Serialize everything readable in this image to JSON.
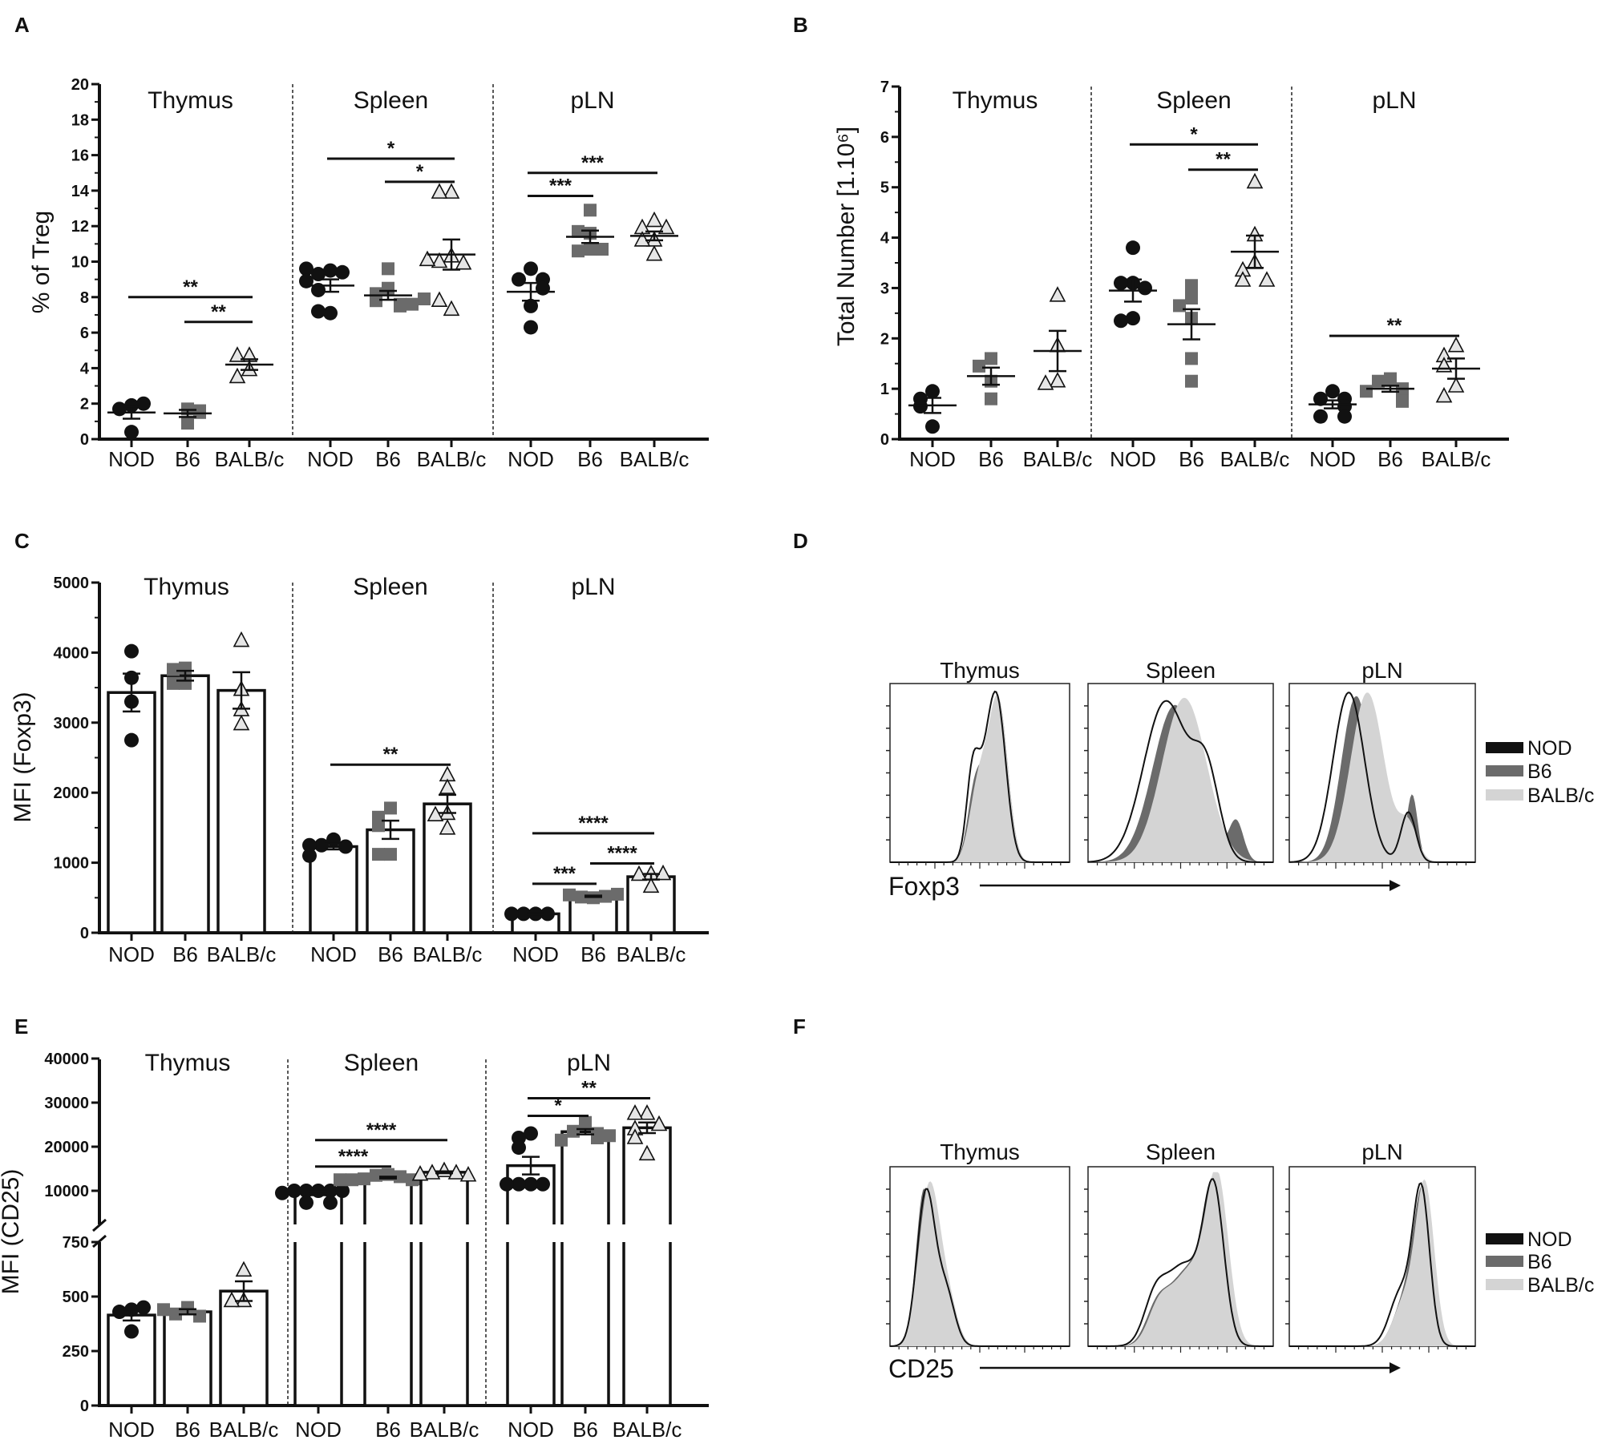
{
  "panel_letters": [
    "A",
    "B",
    "C",
    "D",
    "E",
    "F"
  ],
  "colors": {
    "NOD": "#111111",
    "B6": "#6b6b6b",
    "BALB/c": "#d4d4d4"
  },
  "chart_data": [
    {
      "panel": "A",
      "type": "scatter",
      "ylabel": "% of Treg",
      "ylim": [
        0,
        20
      ],
      "yticks": [
        0,
        2,
        4,
        6,
        8,
        10,
        12,
        14,
        16,
        18,
        20
      ],
      "panels": [
        {
          "title": "Thymus",
          "groups": [
            {
              "name": "NOD",
              "values": [
                1.9,
                1.7,
                2.0,
                0.4
              ],
              "mean": 1.5,
              "sem": 0.35
            },
            {
              "name": "B6",
              "values": [
                1.7,
                0.9,
                1.5,
                1.6
              ],
              "mean": 1.45,
              "sem": 0.2
            },
            {
              "name": "BALB/c",
              "values": [
                4.7,
                4.7,
                3.9,
                3.5
              ],
              "mean": 4.2,
              "sem": 0.3
            }
          ],
          "significance": [
            {
              "from": 0,
              "to": 2,
              "y": 8.0,
              "label": "**"
            },
            {
              "from": 1,
              "to": 2,
              "y": 6.6,
              "label": "**"
            }
          ]
        },
        {
          "title": "Spleen",
          "groups": [
            {
              "name": "NOD",
              "values": [
                9.5,
                9.3,
                9.4,
                9.6,
                8.9,
                8.4,
                7.1,
                7.2
              ],
              "mean": 8.65,
              "sem": 0.35
            },
            {
              "name": "B6",
              "values": [
                9.6,
                8.5,
                8.2,
                7.8,
                7.6,
                7.5,
                7.6,
                7.9
              ],
              "mean": 8.1,
              "sem": 0.25
            },
            {
              "name": "BALB/c",
              "values": [
                13.9,
                13.9,
                10.3,
                10.0,
                9.9,
                10.1,
                7.3,
                7.8
              ],
              "mean": 10.4,
              "sem": 0.85
            }
          ],
          "significance": [
            {
              "from": 0,
              "to": 2,
              "y": 15.8,
              "label": "*"
            },
            {
              "from": 1,
              "to": 2,
              "y": 14.5,
              "label": "*"
            }
          ]
        },
        {
          "title": "pLN",
          "groups": [
            {
              "name": "NOD",
              "values": [
                9.6,
                9.0,
                9.0,
                8.5,
                7.5,
                6.3
              ],
              "mean": 8.3,
              "sem": 0.5
            },
            {
              "name": "B6",
              "values": [
                12.9,
                11.6,
                11.7,
                10.7,
                10.6,
                10.7
              ],
              "mean": 11.4,
              "sem": 0.35
            },
            {
              "name": "BALB/c",
              "values": [
                12.3,
                11.9,
                11.9,
                11.2,
                11.2,
                10.4
              ],
              "mean": 11.45,
              "sem": 0.25
            }
          ],
          "significance": [
            {
              "from": 0,
              "to": 2,
              "y": 15.0,
              "label": "***"
            },
            {
              "from": 0,
              "to": 1,
              "y": 13.7,
              "label": "***"
            }
          ]
        }
      ]
    },
    {
      "panel": "B",
      "type": "scatter",
      "ylabel": "Total Number [1.10⁶]",
      "ylim": [
        0,
        7
      ],
      "yticks": [
        0,
        1,
        2,
        3,
        4,
        5,
        6,
        7
      ],
      "panels": [
        {
          "title": "Thymus",
          "groups": [
            {
              "name": "NOD",
              "values": [
                0.95,
                0.8,
                0.65,
                0.25
              ],
              "mean": 0.67,
              "sem": 0.15
            },
            {
              "name": "B6",
              "values": [
                1.6,
                1.45,
                1.15,
                0.8
              ],
              "mean": 1.25,
              "sem": 0.17
            },
            {
              "name": "BALB/c",
              "values": [
                2.85,
                1.85,
                1.15,
                1.1
              ],
              "mean": 1.75,
              "sem": 0.4
            }
          ],
          "significance": []
        },
        {
          "title": "Spleen",
          "groups": [
            {
              "name": "NOD",
              "values": [
                3.8,
                3.1,
                3.1,
                3.0,
                2.4,
                2.35
              ],
              "mean": 2.95,
              "sem": 0.22
            },
            {
              "name": "B6",
              "values": [
                3.05,
                2.8,
                2.65,
                2.4,
                1.6,
                1.15
              ],
              "mean": 2.28,
              "sem": 0.3
            },
            {
              "name": "BALB/c",
              "values": [
                5.1,
                4.05,
                3.5,
                3.35,
                3.15,
                3.15
              ],
              "mean": 3.72,
              "sem": 0.32
            }
          ],
          "significance": [
            {
              "from": 0,
              "to": 2,
              "y": 5.85,
              "label": "*"
            },
            {
              "from": 1,
              "to": 2,
              "y": 5.35,
              "label": "**"
            }
          ]
        },
        {
          "title": "pLN",
          "groups": [
            {
              "name": "NOD",
              "values": [
                0.95,
                0.8,
                0.8,
                0.65,
                0.45,
                0.45
              ],
              "mean": 0.69,
              "sem": 0.08
            },
            {
              "name": "B6",
              "values": [
                1.2,
                1.15,
                1.0,
                0.95,
                0.95,
                0.75
              ],
              "mean": 1.0,
              "sem": 0.06
            },
            {
              "name": "BALB/c",
              "values": [
                1.85,
                1.65,
                1.45,
                1.05,
                0.85
              ],
              "mean": 1.4,
              "sem": 0.2
            }
          ],
          "significance": [
            {
              "from": 0,
              "to": 2,
              "y": 2.05,
              "label": "**"
            }
          ]
        }
      ]
    },
    {
      "panel": "C",
      "type": "bar",
      "ylabel": "MFI (Foxp3)",
      "ylim": [
        0,
        5000
      ],
      "yticks": [
        0,
        1000,
        2000,
        3000,
        4000,
        5000
      ],
      "panels": [
        {
          "title": "Thymus",
          "groups": [
            {
              "name": "NOD",
              "values": [
                4020,
                3640,
                3300,
                2750
              ],
              "mean": 3430,
              "sem": 270
            },
            {
              "name": "B6",
              "values": [
                3780,
                3760,
                3560,
                3560
              ],
              "mean": 3670,
              "sem": 70
            },
            {
              "name": "BALB/c",
              "values": [
                4170,
                3470,
                3180,
                2980
              ],
              "mean": 3460,
              "sem": 260
            }
          ],
          "significance": []
        },
        {
          "title": "Spleen",
          "groups": [
            {
              "name": "NOD",
              "values": [
                1330,
                1250,
                1230,
                1250,
                1100
              ],
              "mean": 1230,
              "sem": 40
            },
            {
              "name": "B6",
              "values": [
                1780,
                1650,
                1530,
                1120,
                1120
              ],
              "mean": 1470,
              "sem": 130
            },
            {
              "name": "BALB/c",
              "values": [
                2250,
                2070,
                1700,
                1680,
                1490
              ],
              "mean": 1840,
              "sem": 130
            }
          ],
          "significance": [
            {
              "from": 0,
              "to": 2,
              "y": 2400,
              "label": "**"
            }
          ]
        },
        {
          "title": "pLN",
          "groups": [
            {
              "name": "NOD",
              "values": [
                270,
                270,
                270,
                270
              ],
              "mean": 270,
              "sem": 5
            },
            {
              "name": "B6",
              "values": [
                500,
                510,
                520,
                540,
                550
              ],
              "mean": 520,
              "sem": 10
            },
            {
              "name": "BALB/c",
              "values": [
                840,
                830,
                840,
                660
              ],
              "mean": 800,
              "sem": 40
            }
          ],
          "significance": [
            {
              "from": 0,
              "to": 2,
              "y": 1420,
              "label": "****"
            },
            {
              "from": 1,
              "to": 2,
              "y": 990,
              "label": "****"
            },
            {
              "from": 0,
              "to": 1,
              "y": 700,
              "label": "***"
            }
          ]
        }
      ]
    },
    {
      "panel": "E",
      "type": "bar",
      "ylabel": "MFI (CD25)",
      "ylim": [
        0,
        40000
      ],
      "axis_break": [
        750,
        10000
      ],
      "yticks": [
        0,
        250,
        500,
        750,
        10000,
        20000,
        30000,
        40000
      ],
      "panels": [
        {
          "title": "Thymus",
          "groups": [
            {
              "name": "NOD",
              "values": [
                440,
                430,
                450,
                340
              ],
              "mean": 415,
              "sem": 25
            },
            {
              "name": "B6",
              "values": [
                450,
                420,
                410,
                440
              ],
              "mean": 430,
              "sem": 12
            },
            {
              "name": "BALB/c",
              "values": [
                620,
                480,
                480
              ],
              "mean": 525,
              "sem": 45
            }
          ],
          "significance": []
        },
        {
          "title": "Spleen",
          "groups": [
            {
              "name": "NOD",
              "values": [
                10000,
                10000,
                10000,
                10000,
                10000,
                9500,
                7300,
                7300
              ],
              "mean": 9400,
              "sem": 400
            },
            {
              "name": "B6",
              "values": [
                13700,
                13500,
                13200,
                12700,
                12500,
                12500,
                12700,
                12500
              ],
              "mean": 13000,
              "sem": 200
            },
            {
              "name": "BALB/c",
              "values": [
                14500,
                14000,
                14000,
                13700,
                13500
              ],
              "mean": 14200,
              "sem": 200
            }
          ],
          "significance": [
            {
              "from": 0,
              "to": 2,
              "y": 21500,
              "label": "****"
            },
            {
              "from": 0,
              "to": 1,
              "y": 15500,
              "label": "****"
            }
          ]
        },
        {
          "title": "pLN",
          "groups": [
            {
              "name": "NOD",
              "values": [
                23000,
                22000,
                19800,
                11500,
                11500,
                11500,
                11500
              ],
              "mean": 15700,
              "sem": 2000
            },
            {
              "name": "B6",
              "values": [
                25500,
                23500,
                23000,
                22000,
                21500,
                22500
              ],
              "mean": 23400,
              "sem": 600
            },
            {
              "name": "BALB/c",
              "values": [
                27500,
                27500,
                25000,
                24000,
                22000,
                18300
              ],
              "mean": 24300,
              "sem": 1200
            }
          ],
          "significance": [
            {
              "from": 0,
              "to": 2,
              "y": 31000,
              "label": "**"
            },
            {
              "from": 0,
              "to": 1,
              "y": 27000,
              "label": "*"
            }
          ]
        }
      ]
    },
    {
      "panel": "D",
      "type": "histogram",
      "titles": [
        "Thymus",
        "Spleen",
        "pLN"
      ],
      "xlabel": "Foxp3",
      "legend": [
        "NOD",
        "B6",
        "BALB/c"
      ]
    },
    {
      "panel": "F",
      "type": "histogram",
      "titles": [
        "Thymus",
        "Spleen",
        "pLN"
      ],
      "xlabel": "CD25",
      "legend": [
        "NOD",
        "B6",
        "BALB/c"
      ]
    }
  ]
}
